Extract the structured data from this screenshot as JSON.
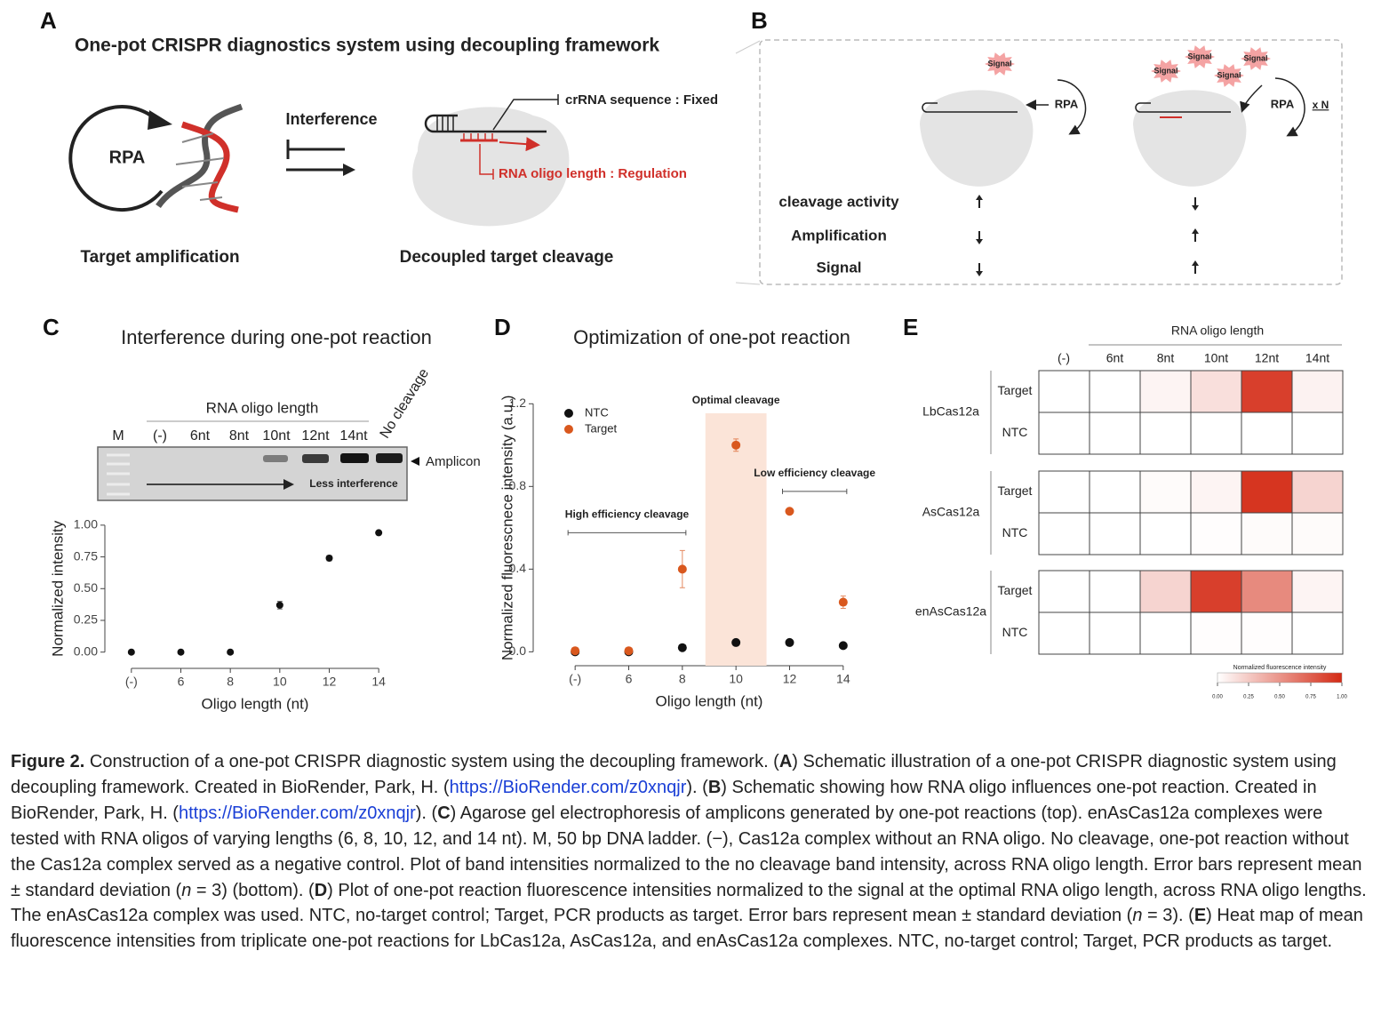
{
  "panel_a": {
    "label": "A",
    "title": "One-pot CRISPR diagnostics system using decoupling framework",
    "rpa": "RPA",
    "interference": "Interference",
    "crrna": "crRNA sequence : Fixed",
    "oligo": "RNA oligo length : Regulation",
    "left_caption": "Target amplification",
    "right_caption": "Decoupled target cleavage"
  },
  "panel_b": {
    "label": "B",
    "signals": [
      "Signal",
      "Signal",
      "Signal",
      "Signal",
      "Signal"
    ],
    "rpa": [
      "RPA",
      "RPA"
    ],
    "multiplier": "x N",
    "rows": [
      "cleavage activity",
      "Amplification",
      "Signal"
    ]
  },
  "panel_c": {
    "label": "C",
    "gel": {
      "marker": "M",
      "lanes_header": "RNA oligo length",
      "lanes": [
        "(-)",
        "6nt",
        "8nt",
        "10nt",
        "12nt",
        "14nt",
        "No cleavage"
      ],
      "band": "Amplicon",
      "arrow": "Less interference"
    }
  },
  "panel_d": {
    "label": "D"
  },
  "panel_e": {
    "label": "E"
  },
  "chart_data": [
    {
      "type": "errorbar",
      "title": "Interference during one-pot reaction",
      "categories": [
        "(-)",
        "6",
        "8",
        "10",
        "12",
        "14"
      ],
      "values": [
        0,
        0,
        0,
        0.37,
        0.74,
        0.94
      ],
      "errors": [
        0,
        0,
        0,
        0.03,
        0.02,
        0.01
      ],
      "color": "#111111",
      "xlabel": "Oligo length (nt)",
      "ylabel": "Normalized intensity",
      "ylim": [
        -0.1,
        1.02
      ],
      "yticks": [
        {
          "value": 0,
          "label": "0.00"
        },
        0.25,
        {
          "value": 0.5,
          "label": "0.50"
        },
        0.75,
        {
          "value": 1,
          "label": "1.00"
        }
      ]
    },
    {
      "type": "errorbar",
      "title": "Optimization of one-pot reaction",
      "categories": [
        "(-)",
        "6",
        "8",
        "10",
        "12",
        "14"
      ],
      "series": [
        {
          "name": "NTC",
          "color": "#111111",
          "values": [
            0,
            0,
            0.02,
            0.045,
            0.045,
            0.03
          ],
          "errors": [
            0,
            0,
            0.01,
            0.005,
            0.005,
            0.005
          ]
        },
        {
          "name": "Target",
          "color": "#d9581e",
          "values": [
            0.005,
            0.005,
            0.4,
            1.0,
            0.68,
            0.24
          ],
          "errors": [
            0,
            0,
            0.09,
            0.03,
            0.01,
            0.03
          ]
        }
      ],
      "xlabel": "Oligo length (nt)",
      "ylabel": "Normalized fluorescnece intensity (a.u.)",
      "ylim": [
        -0.05,
        1.24
      ],
      "yticks": [
        {
          "value": 0,
          "label": "0.0"
        },
        0.4,
        0.8,
        1.2
      ],
      "legend": "upper left",
      "highlight": "10",
      "annotations": [
        {
          "text": "Optimal cleavage",
          "from": "10",
          "to": "10"
        },
        {
          "text": "High efficiency cleavage",
          "from": "(-)",
          "to": "8"
        },
        {
          "text": "Low efficiency cleavage",
          "from": "12",
          "to": "14"
        }
      ]
    },
    {
      "type": "heatmap",
      "column_title": "RNA oligo length",
      "columns": [
        "(-)",
        "6nt",
        "8nt",
        "10nt",
        "12nt",
        "14nt"
      ],
      "groups": [
        {
          "name": "LbCas12a",
          "rows": [
            {
              "name": "Target",
              "values": [
                0,
                0,
                0.05,
                0.15,
                0.9,
                0.06
              ]
            },
            {
              "name": "NTC",
              "values": [
                0,
                0,
                0,
                0,
                0,
                0
              ]
            }
          ]
        },
        {
          "name": "AsCas12a",
          "rows": [
            {
              "name": "Target",
              "values": [
                0,
                0,
                0.02,
                0.05,
                0.95,
                0.2
              ]
            },
            {
              "name": "NTC",
              "values": [
                0,
                0,
                0,
                0.01,
                0.02,
                0.02
              ]
            }
          ]
        },
        {
          "name": "enAsCas12a",
          "rows": [
            {
              "name": "Target",
              "values": [
                0,
                0,
                0.2,
                0.9,
                0.55,
                0.05
              ]
            },
            {
              "name": "NTC",
              "values": [
                0,
                0,
                0,
                0.01,
                0.01,
                0
              ]
            }
          ]
        }
      ],
      "colorbar": {
        "title": "Normalized fluorescence intensity",
        "lim": [
          0,
          1
        ],
        "colors": [
          "#ffffff",
          "#d42a14"
        ],
        "ticks": [
          {
            "value": 0,
            "label": "0.00"
          },
          0.25,
          {
            "value": 0.5,
            "label": "0.50"
          },
          0.75,
          {
            "value": 1,
            "label": "1.00"
          }
        ]
      }
    }
  ],
  "caption": [
    "Figure 2.",
    " Construction of a one-pot CRISPR diagnostic system using the decoupling framework. (",
    "A",
    ") Schematic illustration of a one-pot CRISPR diagnostic system using decoupling framework. Created in BioRender, Park, H. (",
    "https://BioRender.com/z0xnqjr",
    "). (",
    "B",
    ") Schematic showing how RNA oligo influences one-pot reaction. Created in BioRender, Park, H. (",
    "https://BioRender.com/z0xnqjr",
    "). (",
    "C",
    ") Agarose gel electrophoresis of amplicons generated by one-pot reactions (top). enAsCas12a complexes were tested with RNA oligos of varying lengths (6, 8, 10, 12, and 14 nt). M, 50 bp DNA ladder. (−), Cas12a complex without an RNA oligo. No cleavage, one-pot reaction without the Cas12a complex served as a negative control. Plot of band intensities normalized to the no cleavage band intensity, across RNA oligo length. Error bars represent mean ± standard deviation (",
    "n",
    " = 3) (bottom). (",
    "D",
    ") Plot of one-pot reaction fluorescence intensities normalized to the signal at the optimal RNA oligo length, across RNA oligo lengths. The enAsCas12a complex was used. NTC, no-target control; Target, PCR products as target. Error bars represent mean ± standard deviation (",
    "n",
    " = 3). (",
    "E",
    ") Heat map of mean fluorescence intensities from triplicate one-pot reactions for LbCas12a, AsCas12a, and enAsCas12a complexes. NTC, no-target control; Target, PCR products as target."
  ]
}
